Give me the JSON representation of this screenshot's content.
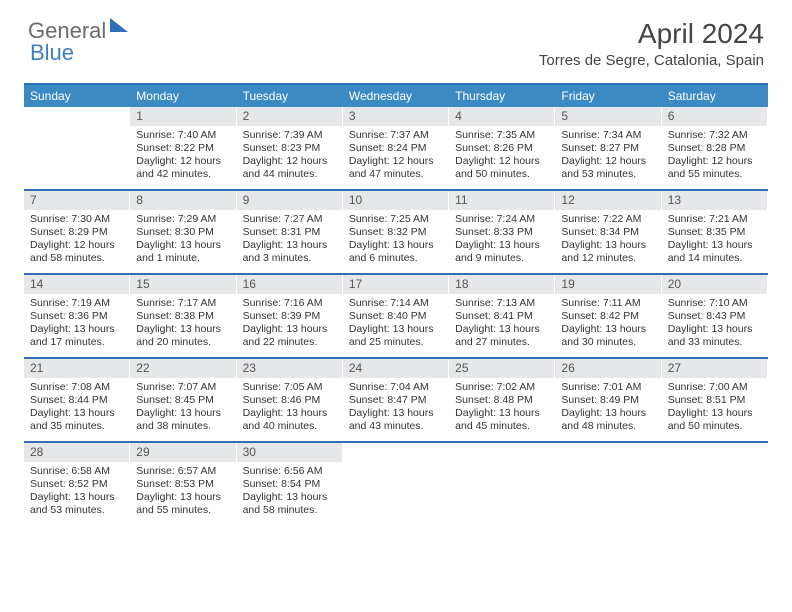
{
  "logo": {
    "text1": "General",
    "text2": "Blue"
  },
  "title": "April 2024",
  "location": "Torres de Segre, Catalonia, Spain",
  "day_names": [
    "Sunday",
    "Monday",
    "Tuesday",
    "Wednesday",
    "Thursday",
    "Friday",
    "Saturday"
  ],
  "colors": {
    "header_bar": "#3b8ac4",
    "border": "#2e6fb5",
    "daynum_bg": "#e5e7e9",
    "text": "#333333"
  },
  "weeks": [
    [
      {
        "num": "",
        "sunrise": "",
        "sunset": "",
        "daylight": ""
      },
      {
        "num": "1",
        "sunrise": "Sunrise: 7:40 AM",
        "sunset": "Sunset: 8:22 PM",
        "daylight": "Daylight: 12 hours and 42 minutes."
      },
      {
        "num": "2",
        "sunrise": "Sunrise: 7:39 AM",
        "sunset": "Sunset: 8:23 PM",
        "daylight": "Daylight: 12 hours and 44 minutes."
      },
      {
        "num": "3",
        "sunrise": "Sunrise: 7:37 AM",
        "sunset": "Sunset: 8:24 PM",
        "daylight": "Daylight: 12 hours and 47 minutes."
      },
      {
        "num": "4",
        "sunrise": "Sunrise: 7:35 AM",
        "sunset": "Sunset: 8:26 PM",
        "daylight": "Daylight: 12 hours and 50 minutes."
      },
      {
        "num": "5",
        "sunrise": "Sunrise: 7:34 AM",
        "sunset": "Sunset: 8:27 PM",
        "daylight": "Daylight: 12 hours and 53 minutes."
      },
      {
        "num": "6",
        "sunrise": "Sunrise: 7:32 AM",
        "sunset": "Sunset: 8:28 PM",
        "daylight": "Daylight: 12 hours and 55 minutes."
      }
    ],
    [
      {
        "num": "7",
        "sunrise": "Sunrise: 7:30 AM",
        "sunset": "Sunset: 8:29 PM",
        "daylight": "Daylight: 12 hours and 58 minutes."
      },
      {
        "num": "8",
        "sunrise": "Sunrise: 7:29 AM",
        "sunset": "Sunset: 8:30 PM",
        "daylight": "Daylight: 13 hours and 1 minute."
      },
      {
        "num": "9",
        "sunrise": "Sunrise: 7:27 AM",
        "sunset": "Sunset: 8:31 PM",
        "daylight": "Daylight: 13 hours and 3 minutes."
      },
      {
        "num": "10",
        "sunrise": "Sunrise: 7:25 AM",
        "sunset": "Sunset: 8:32 PM",
        "daylight": "Daylight: 13 hours and 6 minutes."
      },
      {
        "num": "11",
        "sunrise": "Sunrise: 7:24 AM",
        "sunset": "Sunset: 8:33 PM",
        "daylight": "Daylight: 13 hours and 9 minutes."
      },
      {
        "num": "12",
        "sunrise": "Sunrise: 7:22 AM",
        "sunset": "Sunset: 8:34 PM",
        "daylight": "Daylight: 13 hours and 12 minutes."
      },
      {
        "num": "13",
        "sunrise": "Sunrise: 7:21 AM",
        "sunset": "Sunset: 8:35 PM",
        "daylight": "Daylight: 13 hours and 14 minutes."
      }
    ],
    [
      {
        "num": "14",
        "sunrise": "Sunrise: 7:19 AM",
        "sunset": "Sunset: 8:36 PM",
        "daylight": "Daylight: 13 hours and 17 minutes."
      },
      {
        "num": "15",
        "sunrise": "Sunrise: 7:17 AM",
        "sunset": "Sunset: 8:38 PM",
        "daylight": "Daylight: 13 hours and 20 minutes."
      },
      {
        "num": "16",
        "sunrise": "Sunrise: 7:16 AM",
        "sunset": "Sunset: 8:39 PM",
        "daylight": "Daylight: 13 hours and 22 minutes."
      },
      {
        "num": "17",
        "sunrise": "Sunrise: 7:14 AM",
        "sunset": "Sunset: 8:40 PM",
        "daylight": "Daylight: 13 hours and 25 minutes."
      },
      {
        "num": "18",
        "sunrise": "Sunrise: 7:13 AM",
        "sunset": "Sunset: 8:41 PM",
        "daylight": "Daylight: 13 hours and 27 minutes."
      },
      {
        "num": "19",
        "sunrise": "Sunrise: 7:11 AM",
        "sunset": "Sunset: 8:42 PM",
        "daylight": "Daylight: 13 hours and 30 minutes."
      },
      {
        "num": "20",
        "sunrise": "Sunrise: 7:10 AM",
        "sunset": "Sunset: 8:43 PM",
        "daylight": "Daylight: 13 hours and 33 minutes."
      }
    ],
    [
      {
        "num": "21",
        "sunrise": "Sunrise: 7:08 AM",
        "sunset": "Sunset: 8:44 PM",
        "daylight": "Daylight: 13 hours and 35 minutes."
      },
      {
        "num": "22",
        "sunrise": "Sunrise: 7:07 AM",
        "sunset": "Sunset: 8:45 PM",
        "daylight": "Daylight: 13 hours and 38 minutes."
      },
      {
        "num": "23",
        "sunrise": "Sunrise: 7:05 AM",
        "sunset": "Sunset: 8:46 PM",
        "daylight": "Daylight: 13 hours and 40 minutes."
      },
      {
        "num": "24",
        "sunrise": "Sunrise: 7:04 AM",
        "sunset": "Sunset: 8:47 PM",
        "daylight": "Daylight: 13 hours and 43 minutes."
      },
      {
        "num": "25",
        "sunrise": "Sunrise: 7:02 AM",
        "sunset": "Sunset: 8:48 PM",
        "daylight": "Daylight: 13 hours and 45 minutes."
      },
      {
        "num": "26",
        "sunrise": "Sunrise: 7:01 AM",
        "sunset": "Sunset: 8:49 PM",
        "daylight": "Daylight: 13 hours and 48 minutes."
      },
      {
        "num": "27",
        "sunrise": "Sunrise: 7:00 AM",
        "sunset": "Sunset: 8:51 PM",
        "daylight": "Daylight: 13 hours and 50 minutes."
      }
    ],
    [
      {
        "num": "28",
        "sunrise": "Sunrise: 6:58 AM",
        "sunset": "Sunset: 8:52 PM",
        "daylight": "Daylight: 13 hours and 53 minutes."
      },
      {
        "num": "29",
        "sunrise": "Sunrise: 6:57 AM",
        "sunset": "Sunset: 8:53 PM",
        "daylight": "Daylight: 13 hours and 55 minutes."
      },
      {
        "num": "30",
        "sunrise": "Sunrise: 6:56 AM",
        "sunset": "Sunset: 8:54 PM",
        "daylight": "Daylight: 13 hours and 58 minutes."
      },
      {
        "num": "",
        "sunrise": "",
        "sunset": "",
        "daylight": ""
      },
      {
        "num": "",
        "sunrise": "",
        "sunset": "",
        "daylight": ""
      },
      {
        "num": "",
        "sunrise": "",
        "sunset": "",
        "daylight": ""
      },
      {
        "num": "",
        "sunrise": "",
        "sunset": "",
        "daylight": ""
      }
    ]
  ]
}
